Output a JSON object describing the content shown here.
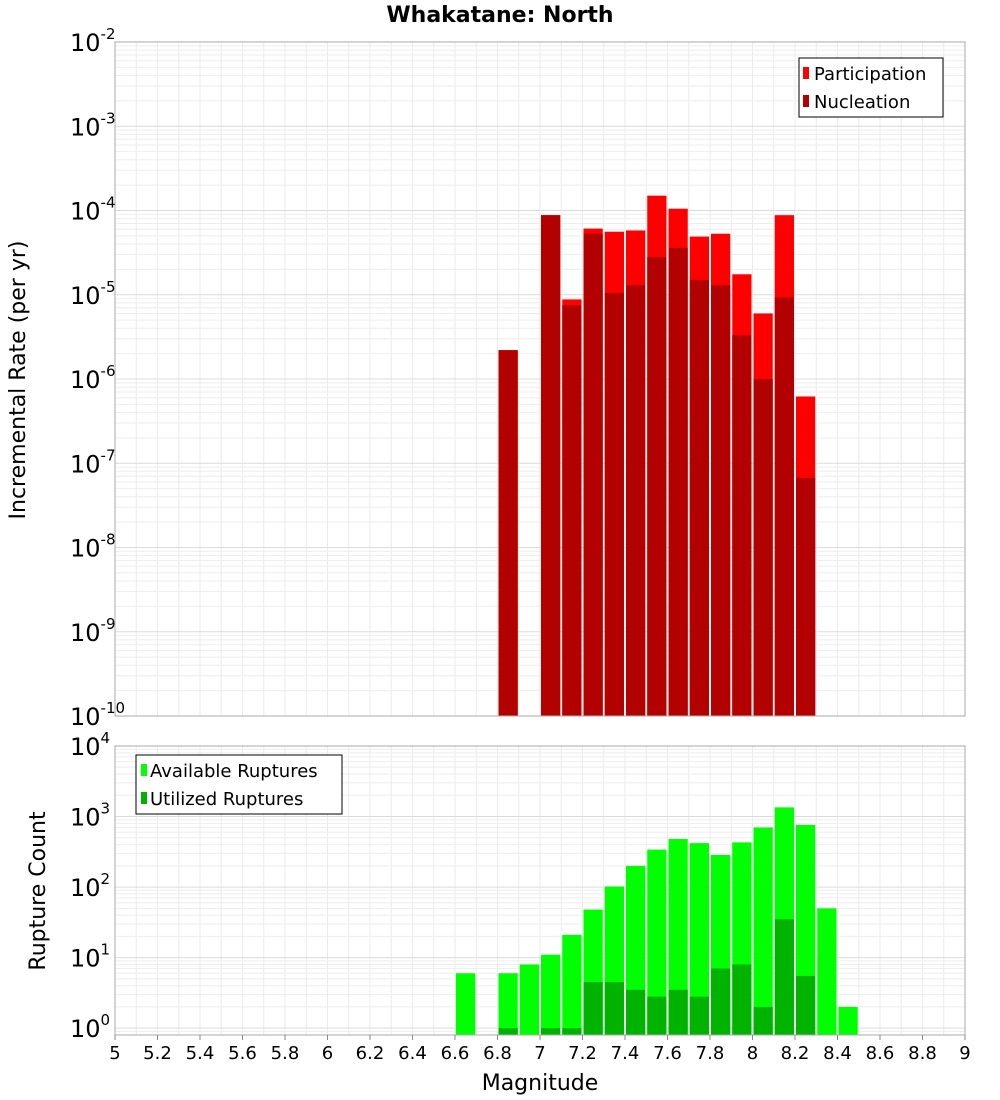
{
  "chart_data": [
    {
      "type": "bar",
      "title": "Whakatane: North",
      "xlabel": "",
      "ylabel": "Incremental Rate (per yr)",
      "x_range": [
        5,
        9
      ],
      "y_scale": "log",
      "y_range": [
        1e-10,
        0.01
      ],
      "y_ticks": [
        {
          "base": "10",
          "exp": "-10"
        },
        {
          "base": "10",
          "exp": "-9"
        },
        {
          "base": "10",
          "exp": "-8"
        },
        {
          "base": "10",
          "exp": "-7"
        },
        {
          "base": "10",
          "exp": "-6"
        },
        {
          "base": "10",
          "exp": "-5"
        },
        {
          "base": "10",
          "exp": "-4"
        },
        {
          "base": "10",
          "exp": "-3"
        },
        {
          "base": "10",
          "exp": "-2"
        }
      ],
      "grid": true,
      "legend_position": "top-right",
      "series": [
        {
          "name": "Participation",
          "color": "#ff0000",
          "x": [
            6.85,
            7.05,
            7.15,
            7.25,
            7.35,
            7.45,
            7.55,
            7.65,
            7.75,
            7.85,
            7.95,
            8.05,
            8.15,
            8.25
          ],
          "values": [
            2.2e-06,
            8.8e-05,
            8.8e-06,
            6.1e-05,
            5.6e-05,
            5.8e-05,
            0.00015,
            0.000105,
            4.9e-05,
            5.3e-05,
            1.75e-05,
            6e-06,
            8.8e-05,
            6.2e-07
          ]
        },
        {
          "name": "Nucleation",
          "color": "#b30000",
          "x": [
            6.85,
            7.05,
            7.15,
            7.25,
            7.35,
            7.45,
            7.55,
            7.65,
            7.75,
            7.85,
            7.95,
            8.05,
            8.15,
            8.25
          ],
          "values": [
            2.2e-06,
            8.8e-05,
            7.5e-06,
            5.3e-05,
            1.05e-05,
            1.3e-05,
            2.8e-05,
            3.6e-05,
            1.5e-05,
            1.3e-05,
            3.3e-06,
            1e-06,
            9.3e-06,
            6.7e-08
          ]
        }
      ]
    },
    {
      "type": "bar",
      "xlabel": "Magnitude",
      "ylabel": "Rupture Count",
      "x_range": [
        5,
        9
      ],
      "x_ticks": [
        "5",
        "5.2",
        "5.4",
        "5.6",
        "5.8",
        "6",
        "6.2",
        "6.4",
        "6.6",
        "6.8",
        "7",
        "7.2",
        "7.4",
        "7.6",
        "7.8",
        "8",
        "8.2",
        "8.4",
        "8.6",
        "8.8",
        "9"
      ],
      "y_scale": "log",
      "y_range": [
        0.8,
        10000
      ],
      "y_ticks": [
        {
          "base": "10",
          "exp": "0"
        },
        {
          "base": "10",
          "exp": "1"
        },
        {
          "base": "10",
          "exp": "2"
        },
        {
          "base": "10",
          "exp": "3"
        },
        {
          "base": "10",
          "exp": "4"
        }
      ],
      "grid": true,
      "legend_position": "top-left",
      "series": [
        {
          "name": "Available Ruptures",
          "color": "#00ff00",
          "x": [
            6.65,
            6.85,
            6.95,
            7.05,
            7.15,
            7.25,
            7.35,
            7.45,
            7.55,
            7.65,
            7.75,
            7.85,
            7.95,
            8.05,
            8.15,
            8.25,
            8.35,
            8.45
          ],
          "values": [
            6,
            6,
            8,
            11,
            21,
            48,
            102,
            200,
            340,
            480,
            420,
            285,
            430,
            700,
            1350,
            760,
            50,
            2
          ]
        },
        {
          "name": "Utilized Ruptures",
          "color": "#00b300",
          "x": [
            6.85,
            7.05,
            7.15,
            7.25,
            7.35,
            7.45,
            7.55,
            7.65,
            7.75,
            7.85,
            7.95,
            8.05,
            8.15,
            8.25
          ],
          "values": [
            1,
            1,
            1,
            4.5,
            4.5,
            3.5,
            2.8,
            3.5,
            2.8,
            7,
            8,
            2,
            35,
            5.5
          ]
        }
      ]
    }
  ]
}
